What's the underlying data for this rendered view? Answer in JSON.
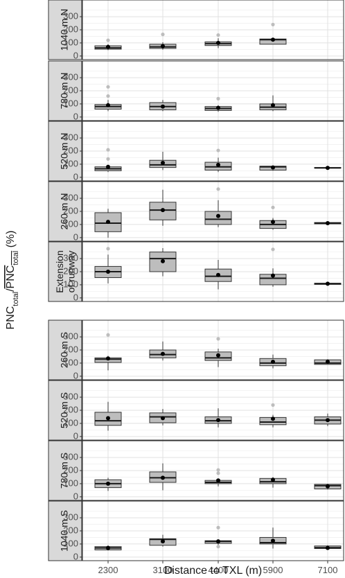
{
  "chart_data": {
    "type": "boxplot",
    "xlabel": "Distance to TXL (m)",
    "ylabel": {
      "part1": "PNC",
      "sub1": "total",
      "slash": "/",
      "part2": "PNC",
      "sub2": "total",
      "unit": "(%)"
    },
    "categories": [
      "2300",
      "3100",
      "4400",
      "5900",
      "7100"
    ],
    "yticks": [
      0,
      100,
      200,
      300
    ],
    "ylim": [
      0,
      400
    ],
    "grid": true,
    "box_fill": "#bdbdbd",
    "outlier_color": "#bdbdbd",
    "mean_color": "#000000",
    "strip_fill": "#d9d9d9",
    "panels": [
      {
        "label": [
          "1040 m N"
        ],
        "boxes": [
          {
            "x": "2300",
            "whislo": 45,
            "q1": 52,
            "med": 62,
            "q3": 78,
            "whishi": 90,
            "mean": 70,
            "fliers": [
              120
            ]
          },
          {
            "x": "3100",
            "whislo": 48,
            "q1": 58,
            "med": 70,
            "q3": 90,
            "whishi": 105,
            "mean": 75,
            "fliers": [
              165
            ]
          },
          {
            "x": "4400",
            "whislo": 60,
            "q1": 80,
            "med": 95,
            "q3": 108,
            "whishi": 135,
            "mean": 100,
            "fliers": [
              160
            ]
          },
          {
            "x": "5900",
            "whislo": 90,
            "q1": 90,
            "med": 125,
            "q3": 130,
            "whishi": 135,
            "mean": 125,
            "fliers": [
              240
            ]
          }
        ]
      },
      {
        "label": [
          "780 m N"
        ],
        "boxes": [
          {
            "x": "2300",
            "whislo": 45,
            "q1": 60,
            "med": 80,
            "q3": 95,
            "whishi": 130,
            "mean": 90,
            "fliers": [
              160,
              230
            ]
          },
          {
            "x": "3100",
            "whislo": 45,
            "q1": 55,
            "med": 80,
            "q3": 110,
            "whishi": 130,
            "mean": 80,
            "fliers": []
          },
          {
            "x": "4400",
            "whislo": 40,
            "q1": 50,
            "med": 65,
            "q3": 80,
            "whishi": 90,
            "mean": 70,
            "fliers": [
              140
            ]
          },
          {
            "x": "5900",
            "whislo": 45,
            "q1": 55,
            "med": 75,
            "q3": 100,
            "whishi": 165,
            "mean": 90,
            "fliers": []
          }
        ]
      },
      {
        "label": [
          "520 m N"
        ],
        "boxes": [
          {
            "x": "2300",
            "whislo": 40,
            "q1": 50,
            "med": 65,
            "q3": 80,
            "whishi": 95,
            "mean": 80,
            "fliers": [
              140,
              210
            ]
          },
          {
            "x": "3100",
            "whislo": 55,
            "q1": 75,
            "med": 95,
            "q3": 130,
            "whishi": 195,
            "mean": 110,
            "fliers": []
          },
          {
            "x": "4400",
            "whislo": 40,
            "q1": 55,
            "med": 80,
            "q3": 115,
            "whishi": 150,
            "mean": 95,
            "fliers": [
              205
            ]
          },
          {
            "x": "5900",
            "whislo": 50,
            "q1": 55,
            "med": 80,
            "q3": 85,
            "whishi": 90,
            "mean": 75,
            "fliers": []
          },
          {
            "x": "7100",
            "whislo": 68,
            "q1": 70,
            "med": 72,
            "q3": 75,
            "whishi": 78,
            "mean": 72,
            "fliers": []
          }
        ]
      },
      {
        "label": [
          "260 m N"
        ],
        "boxes": [
          {
            "x": "2300",
            "whislo": 0,
            "q1": 45,
            "med": 110,
            "q3": 190,
            "whishi": 220,
            "mean": 120,
            "fliers": []
          },
          {
            "x": "3100",
            "whislo": 90,
            "q1": 135,
            "med": 210,
            "q3": 270,
            "whishi": 365,
            "mean": 210,
            "fliers": []
          },
          {
            "x": "4400",
            "whislo": 80,
            "q1": 100,
            "med": 140,
            "q3": 200,
            "whishi": 285,
            "mean": 165,
            "fliers": [
              370
            ]
          },
          {
            "x": "5900",
            "whislo": 60,
            "q1": 70,
            "med": 100,
            "q3": 130,
            "whishi": 150,
            "mean": 120,
            "fliers": [
              230
            ]
          },
          {
            "x": "7100",
            "whislo": 100,
            "q1": 105,
            "med": 110,
            "q3": 115,
            "whishi": 120,
            "mean": 110,
            "fliers": []
          }
        ]
      },
      {
        "label": [
          "Extension",
          "of runway"
        ],
        "boxes": [
          {
            "x": "2300",
            "whislo": 110,
            "q1": 155,
            "med": 200,
            "q3": 240,
            "whishi": 330,
            "mean": 200,
            "fliers": [
              375
            ]
          },
          {
            "x": "3100",
            "whislo": 165,
            "q1": 200,
            "med": 300,
            "q3": 350,
            "whishi": 380,
            "mean": 280,
            "fliers": []
          },
          {
            "x": "4400",
            "whislo": 65,
            "q1": 125,
            "med": 165,
            "q3": 220,
            "whishi": 290,
            "mean": 175,
            "fliers": []
          },
          {
            "x": "5900",
            "whislo": 85,
            "q1": 100,
            "med": 150,
            "q3": 180,
            "whishi": 225,
            "mean": 170,
            "fliers": [
              370
            ]
          },
          {
            "x": "7100",
            "whislo": 100,
            "q1": 103,
            "med": 108,
            "q3": 112,
            "whishi": 115,
            "mean": 108,
            "fliers": []
          }
        ]
      },
      {
        "label": [
          "260 m S"
        ],
        "boxes": [
          {
            "x": "2300",
            "whislo": 45,
            "q1": 105,
            "med": 130,
            "q3": 140,
            "whishi": 155,
            "mean": 135,
            "fliers": [
              315
            ]
          },
          {
            "x": "3100",
            "whislo": 120,
            "q1": 140,
            "med": 165,
            "q3": 200,
            "whishi": 265,
            "mean": 170,
            "fliers": []
          },
          {
            "x": "4400",
            "whislo": 70,
            "q1": 120,
            "med": 140,
            "q3": 185,
            "whishi": 210,
            "mean": 160,
            "fliers": [
              285
            ]
          },
          {
            "x": "5900",
            "whislo": 60,
            "q1": 80,
            "med": 100,
            "q3": 135,
            "whishi": 165,
            "mean": 110,
            "fliers": []
          },
          {
            "x": "7100",
            "whislo": 90,
            "q1": 90,
            "med": 100,
            "q3": 125,
            "whishi": 130,
            "mean": 110,
            "fliers": []
          }
        ]
      },
      {
        "label": [
          "520 m S"
        ],
        "boxes": [
          {
            "x": "2300",
            "whislo": 45,
            "q1": 85,
            "med": 120,
            "q3": 185,
            "whishi": 265,
            "mean": 140,
            "fliers": []
          },
          {
            "x": "3100",
            "whislo": 85,
            "q1": 105,
            "med": 150,
            "q3": 180,
            "whishi": 210,
            "mean": 140,
            "fliers": []
          },
          {
            "x": "4400",
            "whislo": 70,
            "q1": 100,
            "med": 120,
            "q3": 150,
            "whishi": 215,
            "mean": 125,
            "fliers": []
          },
          {
            "x": "5900",
            "whislo": 70,
            "q1": 90,
            "med": 110,
            "q3": 145,
            "whishi": 165,
            "mean": 135,
            "fliers": [
              240
            ]
          },
          {
            "x": "7100",
            "whislo": 80,
            "q1": 95,
            "med": 125,
            "q3": 150,
            "whishi": 175,
            "mean": 125,
            "fliers": []
          }
        ]
      },
      {
        "label": [
          "780 m S"
        ],
        "boxes": [
          {
            "x": "2300",
            "whislo": 45,
            "q1": 70,
            "med": 100,
            "q3": 130,
            "whishi": 145,
            "mean": 100,
            "fliers": []
          },
          {
            "x": "3100",
            "whislo": 50,
            "q1": 110,
            "med": 145,
            "q3": 190,
            "whishi": 255,
            "mean": 145,
            "fliers": []
          },
          {
            "x": "4400",
            "whislo": 80,
            "q1": 100,
            "med": 110,
            "q3": 125,
            "whishi": 135,
            "mean": 125,
            "fliers": [
              180,
              205
            ]
          },
          {
            "x": "5900",
            "whislo": 70,
            "q1": 100,
            "med": 115,
            "q3": 140,
            "whishi": 150,
            "mean": 130,
            "fliers": []
          },
          {
            "x": "7100",
            "whislo": 55,
            "q1": 60,
            "med": 85,
            "q3": 95,
            "whishi": 100,
            "mean": 80,
            "fliers": []
          }
        ]
      },
      {
        "label": [
          "1040 m S"
        ],
        "boxes": [
          {
            "x": "2300",
            "whislo": 50,
            "q1": 55,
            "med": 70,
            "q3": 80,
            "whishi": 90,
            "mean": 70,
            "fliers": []
          },
          {
            "x": "3100",
            "whislo": 80,
            "q1": 90,
            "med": 135,
            "q3": 140,
            "whishi": 170,
            "mean": 120,
            "fliers": []
          },
          {
            "x": "4400",
            "whislo": 90,
            "q1": 105,
            "med": 120,
            "q3": 125,
            "whishi": 130,
            "mean": 120,
            "fliers": [
              80,
              225
            ]
          },
          {
            "x": "5900",
            "whislo": 65,
            "q1": 100,
            "med": 110,
            "q3": 150,
            "whishi": 225,
            "mean": 125,
            "fliers": []
          },
          {
            "x": "7100",
            "whislo": 60,
            "q1": 65,
            "med": 72,
            "q3": 85,
            "whishi": 90,
            "mean": 70,
            "fliers": []
          }
        ]
      }
    ]
  }
}
